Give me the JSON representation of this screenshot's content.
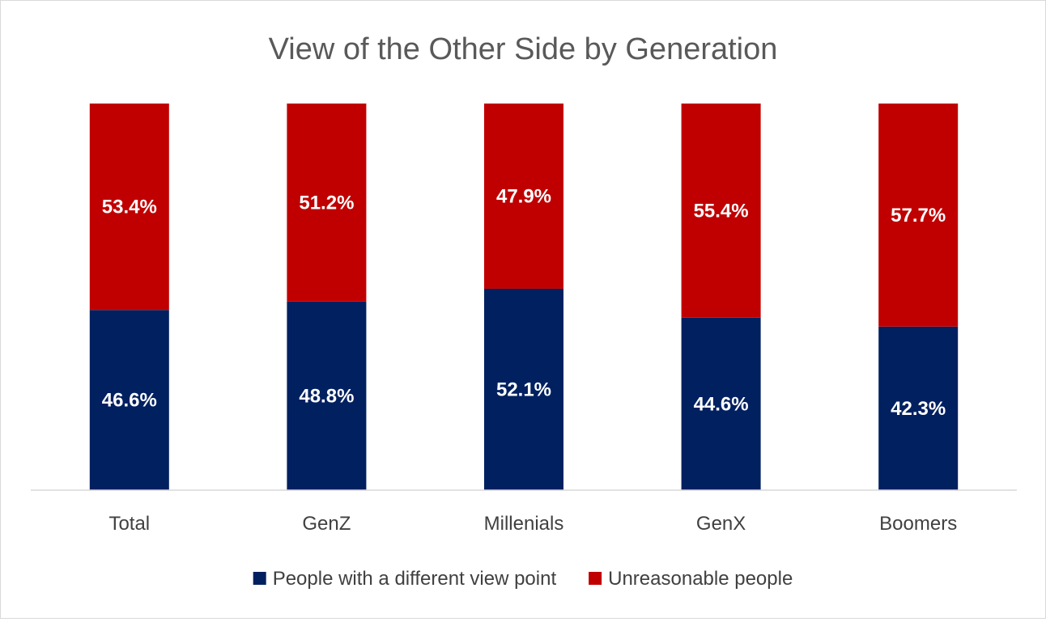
{
  "chart_data": {
    "type": "bar",
    "stacked": true,
    "normalized": true,
    "title": "View of the Other Side by Generation",
    "categories": [
      "Total",
      "GenZ",
      "Millenials",
      "GenX",
      "Boomers"
    ],
    "series": [
      {
        "name": "People with a different view point",
        "color": "#002060",
        "values": [
          46.6,
          48.8,
          52.1,
          44.6,
          42.3
        ],
        "labels": [
          "46.6%",
          "48.8%",
          "52.1%",
          "44.6%",
          "42.3%"
        ]
      },
      {
        "name": "Unreasonable people",
        "color": "#C00000",
        "values": [
          53.4,
          51.2,
          47.9,
          55.4,
          57.7
        ],
        "labels": [
          "53.4%",
          "51.2%",
          "47.9%",
          "55.4%",
          "57.7%"
        ]
      }
    ],
    "ylim": [
      0,
      100
    ],
    "grid": false,
    "legend": "bottom"
  }
}
